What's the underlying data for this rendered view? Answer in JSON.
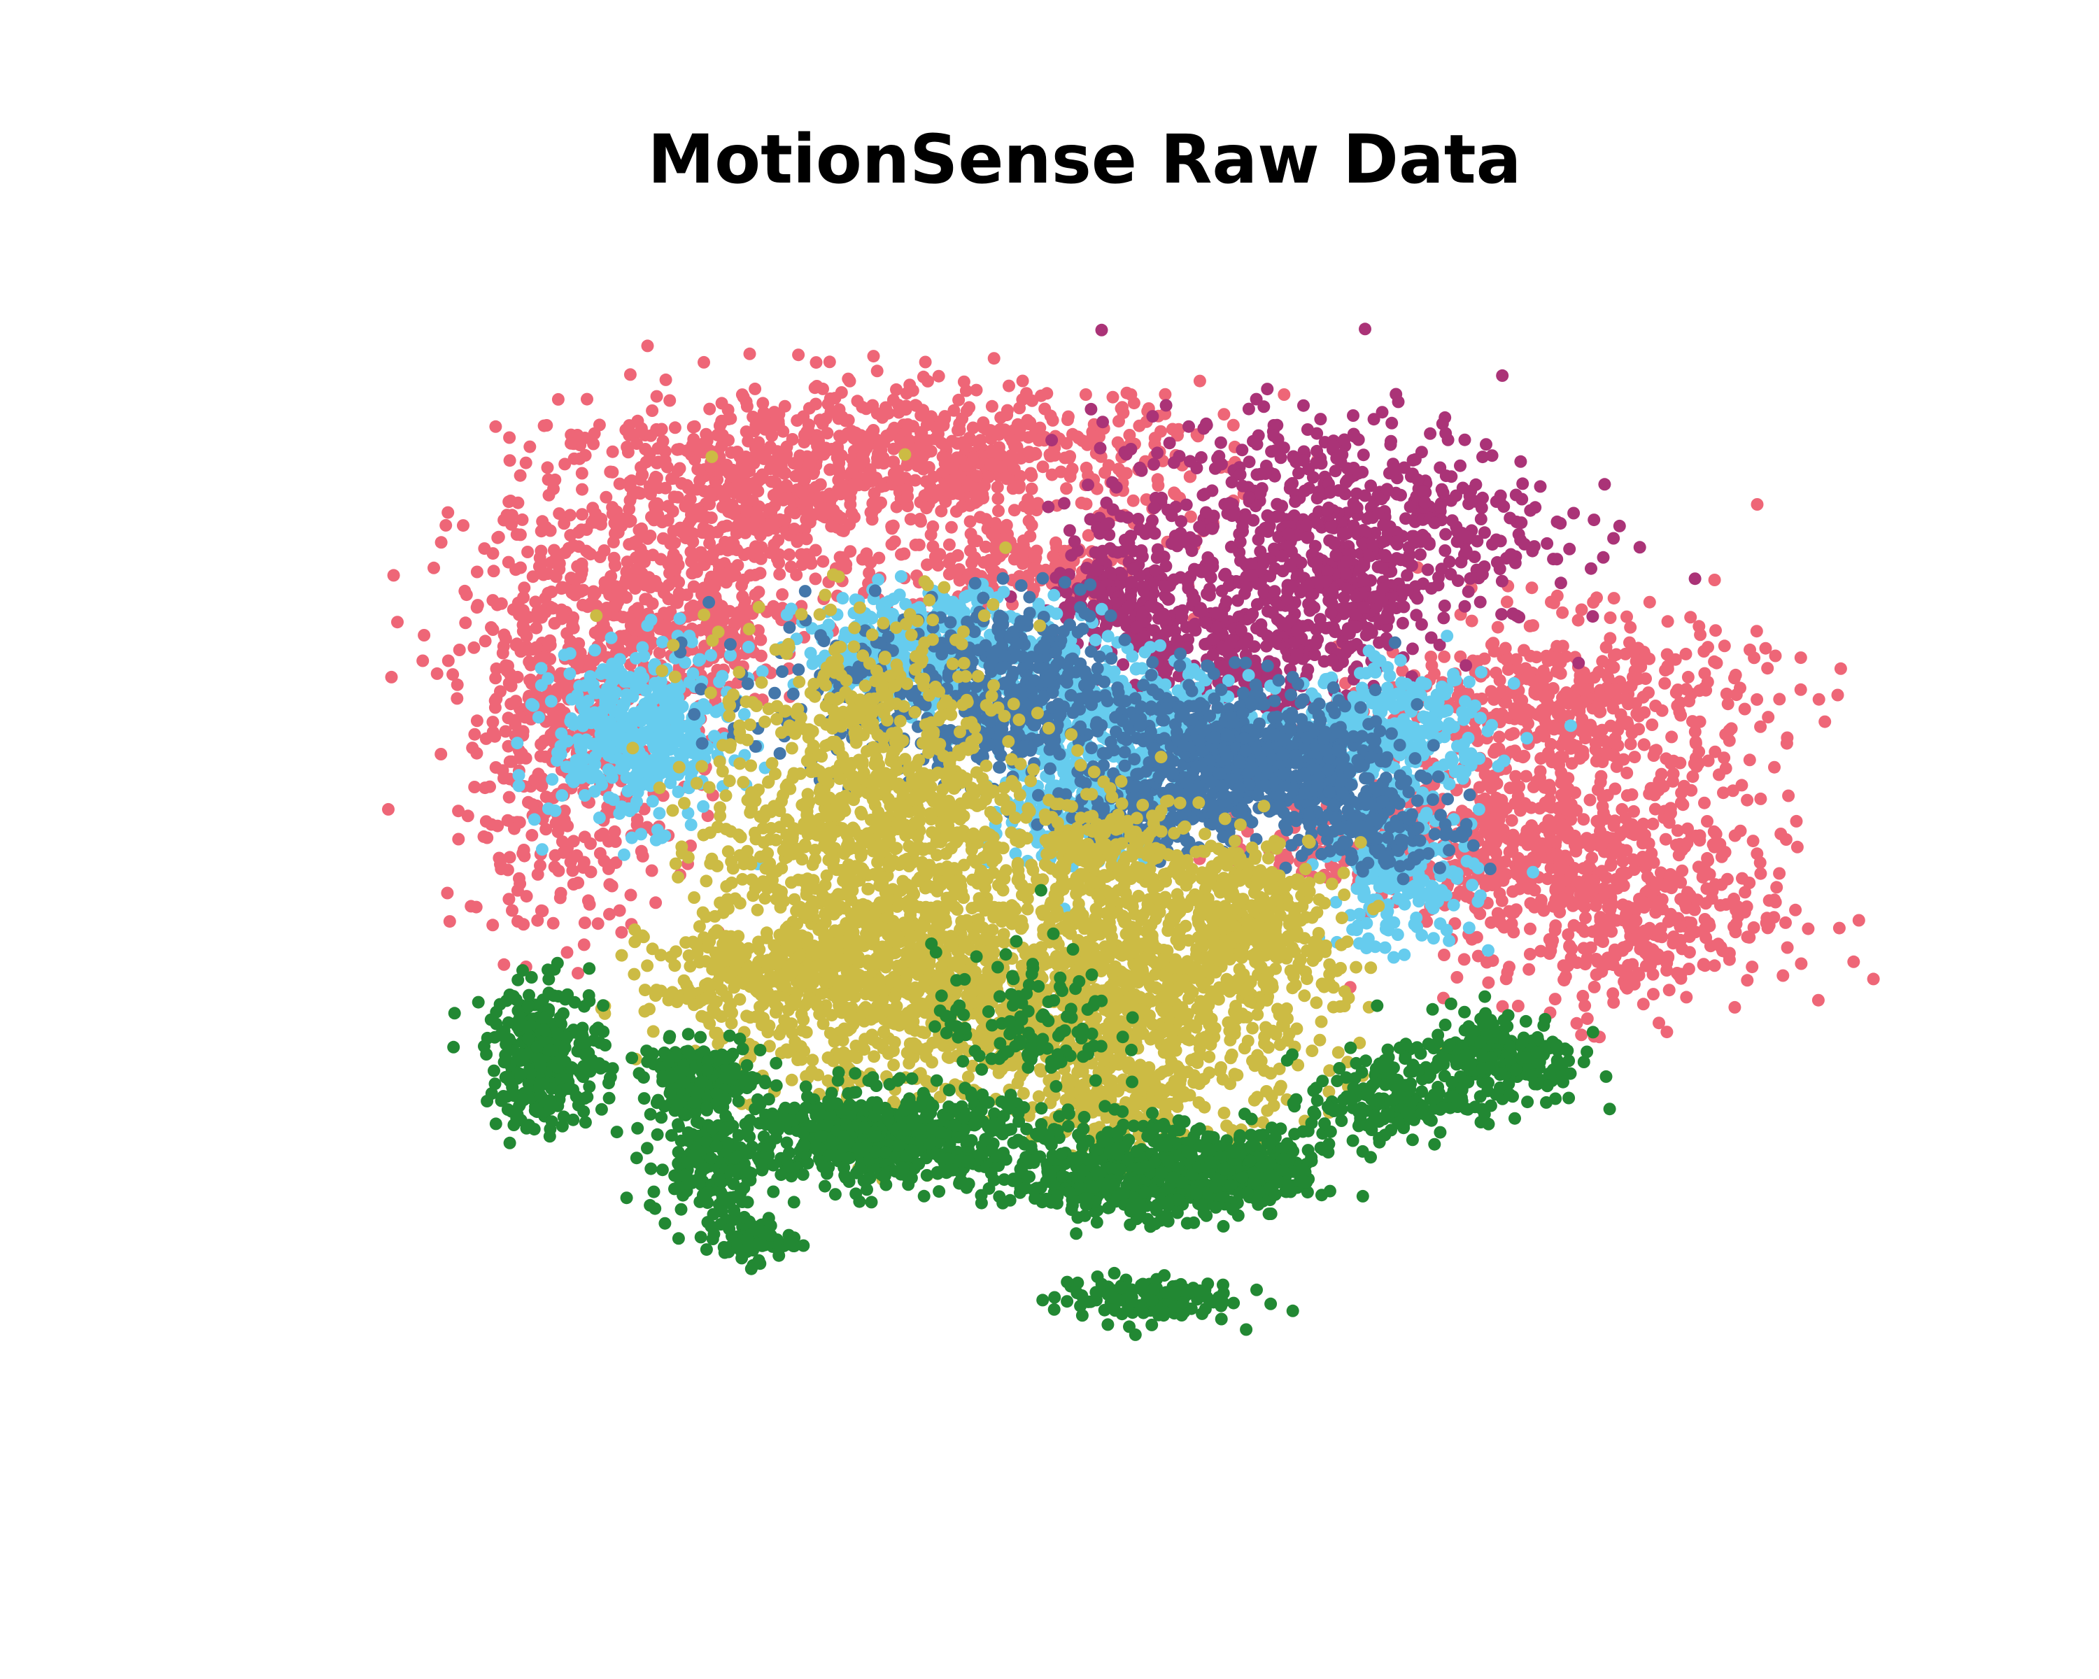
{
  "chart_data": {
    "type": "scatter",
    "title": "MotionSense Raw Data",
    "xlabel": "",
    "ylabel": "",
    "axes_visible": false,
    "grid": false,
    "legend": "none",
    "xlim": [
      -100,
      100
    ],
    "ylim": [
      -100,
      100
    ],
    "series": [
      {
        "color": "#EE6677",
        "clusters": [
          {
            "cx": -46,
            "cy": 58,
            "sx": 12,
            "sy": 8,
            "n": 520
          },
          {
            "cx": -18,
            "cy": 66,
            "sx": 18,
            "sy": 6,
            "n": 620
          },
          {
            "cx": -68,
            "cy": 25,
            "sx": 8,
            "sy": 18,
            "n": 700
          },
          {
            "cx": -52,
            "cy": 38,
            "sx": 7,
            "sy": 6,
            "n": 200
          },
          {
            "cx": 65,
            "cy": 24,
            "sx": 13,
            "sy": 8,
            "n": 520
          },
          {
            "cx": 48,
            "cy": 3,
            "sx": 12,
            "sy": 5,
            "n": 360
          },
          {
            "cx": 72,
            "cy": -8,
            "sx": 11,
            "sy": 9,
            "n": 520
          },
          {
            "cx": -8,
            "cy": 48,
            "sx": 8,
            "sy": 4,
            "n": 160
          }
        ]
      },
      {
        "color": "#AA3377",
        "clusters": [
          {
            "cx": 32,
            "cy": 55,
            "sx": 15,
            "sy": 9,
            "n": 650
          },
          {
            "cx": 18,
            "cy": 35,
            "sx": 7,
            "sy": 7,
            "n": 260
          },
          {
            "cx": 5,
            "cy": 42,
            "sx": 5,
            "sy": 5,
            "n": 150
          },
          {
            "cx": 35,
            "cy": 42,
            "sx": 5,
            "sy": 6,
            "n": 130
          }
        ]
      },
      {
        "color": "#66CCEE",
        "clusters": [
          {
            "cx": -59,
            "cy": 20,
            "sx": 6,
            "sy": 7,
            "n": 450
          },
          {
            "cx": -20,
            "cy": 34,
            "sx": 9,
            "sy": 5,
            "n": 420
          },
          {
            "cx": 5,
            "cy": 22,
            "sx": 7,
            "sy": 6,
            "n": 330
          },
          {
            "cx": -1,
            "cy": 8,
            "sx": 5,
            "sy": 5,
            "n": 230
          },
          {
            "cx": 40,
            "cy": 20,
            "sx": 7,
            "sy": 5,
            "n": 350
          },
          {
            "cx": 42,
            "cy": -3,
            "sx": 5,
            "sy": 6,
            "n": 200
          }
        ]
      },
      {
        "color": "#4477AA",
        "clusters": [
          {
            "cx": -8,
            "cy": 28,
            "sx": 6,
            "sy": 7,
            "n": 300
          },
          {
            "cx": 18,
            "cy": 18,
            "sx": 8,
            "sy": 6,
            "n": 420
          },
          {
            "cx": 30,
            "cy": 14,
            "sx": 6,
            "sy": 5,
            "n": 260
          },
          {
            "cx": -25,
            "cy": 26,
            "sx": 12,
            "sy": 7,
            "n": 220
          },
          {
            "cx": 10,
            "cy": 8,
            "sx": 6,
            "sy": 4,
            "n": 160
          },
          {
            "cx": 40,
            "cy": 5,
            "sx": 6,
            "sy": 4,
            "n": 140
          }
        ]
      },
      {
        "color": "#CCBB44",
        "clusters": [
          {
            "cx": -28,
            "cy": 2,
            "sx": 11,
            "sy": 18,
            "n": 1300
          },
          {
            "cx": -12,
            "cy": -25,
            "sx": 14,
            "sy": 8,
            "n": 700
          },
          {
            "cx": -42,
            "cy": -20,
            "sx": 8,
            "sy": 5,
            "n": 320
          },
          {
            "cx": 12,
            "cy": -22,
            "sx": 11,
            "sy": 10,
            "n": 650
          },
          {
            "cx": 22,
            "cy": -8,
            "sx": 6,
            "sy": 6,
            "n": 260
          },
          {
            "cx": 5,
            "cy": -42,
            "sx": 5,
            "sy": 4,
            "n": 160
          },
          {
            "cx": 3,
            "cy": 0,
            "sx": 6,
            "sy": 5,
            "n": 200
          }
        ]
      },
      {
        "color": "#228833",
        "clusters": [
          {
            "cx": -72,
            "cy": -33,
            "sx": 4,
            "sy": 6,
            "n": 280
          },
          {
            "cx": -51,
            "cy": -37,
            "sx": 4,
            "sy": 3,
            "n": 200
          },
          {
            "cx": -27,
            "cy": -46,
            "sx": 9,
            "sy": 4,
            "n": 620
          },
          {
            "cx": 6,
            "cy": -52,
            "sx": 8,
            "sy": 4,
            "n": 480
          },
          {
            "cx": 22,
            "cy": -52,
            "sx": 5,
            "sy": 3,
            "n": 260
          },
          {
            "cx": 40,
            "cy": -40,
            "sx": 5,
            "sy": 4,
            "n": 190
          },
          {
            "cx": 56,
            "cy": -33,
            "sx": 5,
            "sy": 4,
            "n": 230
          },
          {
            "cx": -50,
            "cy": -51,
            "sx": 4,
            "sy": 4,
            "n": 140
          },
          {
            "cx": -45,
            "cy": -63,
            "sx": 3,
            "sy": 2,
            "n": 80
          },
          {
            "cx": 8,
            "cy": -73,
            "sx": 6,
            "sy": 2,
            "n": 140
          },
          {
            "cx": -8,
            "cy": -27,
            "sx": 6,
            "sy": 6,
            "n": 120
          }
        ]
      }
    ]
  }
}
